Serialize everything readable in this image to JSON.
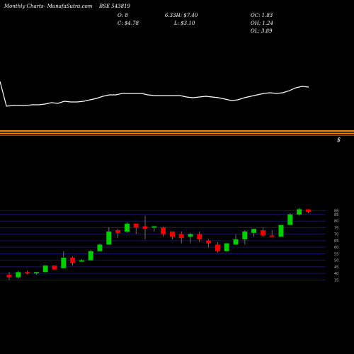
{
  "header": {
    "left": "Monthly Charts",
    "middle": "- MunafaSutra.com",
    "symbol": "BSE 543819"
  },
  "quote": {
    "o": "O: 8",
    "h_prefix": "6.33H: $7.40",
    "c": "C: $4.78",
    "l": "L: $3.10",
    "oc": "OC: 1.83",
    "oh": "OH: 1.24",
    "ol": "OL: 3.89"
  },
  "marker": "$",
  "colors": {
    "up": "#00cc00",
    "down": "#ee0000",
    "band": "#ff8800",
    "grid": "#1a1a6e",
    "line": "#ffffff"
  },
  "chart_data": {
    "type": "candlestick",
    "ylim": [
      32,
      92
    ],
    "yticks": [
      35,
      40,
      45,
      50,
      55,
      60,
      65,
      70,
      75,
      80,
      85,
      88
    ],
    "candles": [
      {
        "o": 39,
        "h": 41,
        "l": 35,
        "c": 37,
        "dir": "down"
      },
      {
        "o": 37,
        "h": 42,
        "l": 36,
        "c": 41,
        "dir": "up"
      },
      {
        "o": 41,
        "h": 42,
        "l": 39,
        "c": 40,
        "dir": "down"
      },
      {
        "o": 40,
        "h": 41,
        "l": 39,
        "c": 41,
        "dir": "up"
      },
      {
        "o": 41,
        "h": 46,
        "l": 41,
        "c": 46,
        "dir": "up"
      },
      {
        "o": 46,
        "h": 46,
        "l": 43,
        "c": 43,
        "dir": "down"
      },
      {
        "o": 44,
        "h": 57,
        "l": 44,
        "c": 52,
        "dir": "up"
      },
      {
        "o": 52,
        "h": 53,
        "l": 46,
        "c": 48,
        "dir": "down"
      },
      {
        "o": 49,
        "h": 51,
        "l": 49,
        "c": 50,
        "dir": "up"
      },
      {
        "o": 50,
        "h": 58,
        "l": 50,
        "c": 57,
        "dir": "up"
      },
      {
        "o": 57,
        "h": 63,
        "l": 57,
        "c": 62,
        "dir": "up"
      },
      {
        "o": 62,
        "h": 75,
        "l": 62,
        "c": 72,
        "dir": "up"
      },
      {
        "o": 73,
        "h": 74,
        "l": 67,
        "c": 71,
        "dir": "down"
      },
      {
        "o": 72,
        "h": 79,
        "l": 71,
        "c": 78,
        "dir": "up"
      },
      {
        "o": 78,
        "h": 78,
        "l": 70,
        "c": 75,
        "dir": "down"
      },
      {
        "o": 76,
        "h": 84,
        "l": 66,
        "c": 74,
        "dir": "down"
      },
      {
        "o": 75,
        "h": 76,
        "l": 72,
        "c": 76,
        "dir": "up"
      },
      {
        "o": 75,
        "h": 76,
        "l": 68,
        "c": 70,
        "dir": "down"
      },
      {
        "o": 72,
        "h": 72,
        "l": 66,
        "c": 68,
        "dir": "down"
      },
      {
        "o": 70,
        "h": 72,
        "l": 63,
        "c": 67,
        "dir": "down"
      },
      {
        "o": 68,
        "h": 71,
        "l": 63,
        "c": 70,
        "dir": "up"
      },
      {
        "o": 70,
        "h": 72,
        "l": 64,
        "c": 66,
        "dir": "down"
      },
      {
        "o": 65,
        "h": 66,
        "l": 60,
        "c": 63,
        "dir": "down"
      },
      {
        "o": 62,
        "h": 64,
        "l": 56,
        "c": 57,
        "dir": "down"
      },
      {
        "o": 57,
        "h": 63,
        "l": 57,
        "c": 63,
        "dir": "up"
      },
      {
        "o": 62,
        "h": 70,
        "l": 62,
        "c": 66,
        "dir": "up"
      },
      {
        "o": 66,
        "h": 73,
        "l": 62,
        "c": 72,
        "dir": "up"
      },
      {
        "o": 71,
        "h": 74,
        "l": 68,
        "c": 74,
        "dir": "up"
      },
      {
        "o": 73,
        "h": 75,
        "l": 68,
        "c": 69,
        "dir": "down"
      },
      {
        "o": 69,
        "h": 73,
        "l": 68,
        "c": 68,
        "dir": "down"
      },
      {
        "o": 68,
        "h": 77,
        "l": 68,
        "c": 77,
        "dir": "up"
      },
      {
        "o": 77,
        "h": 86,
        "l": 77,
        "c": 85,
        "dir": "up"
      },
      {
        "o": 85,
        "h": 90,
        "l": 84,
        "c": 89,
        "dir": "up"
      },
      {
        "o": 89,
        "h": 89,
        "l": 86,
        "c": 87,
        "dir": "down"
      }
    ],
    "overlay_line": [
      55,
      20,
      21,
      21,
      21,
      22,
      22,
      23,
      25,
      24,
      27,
      26,
      26,
      27,
      29,
      31,
      34,
      36,
      36,
      38,
      38,
      38,
      38,
      36,
      35,
      35,
      35,
      35,
      35,
      33,
      32,
      33,
      34,
      33,
      32,
      30,
      28,
      29,
      32,
      34,
      36,
      38,
      39,
      38,
      39,
      42,
      46,
      48,
      47
    ]
  }
}
